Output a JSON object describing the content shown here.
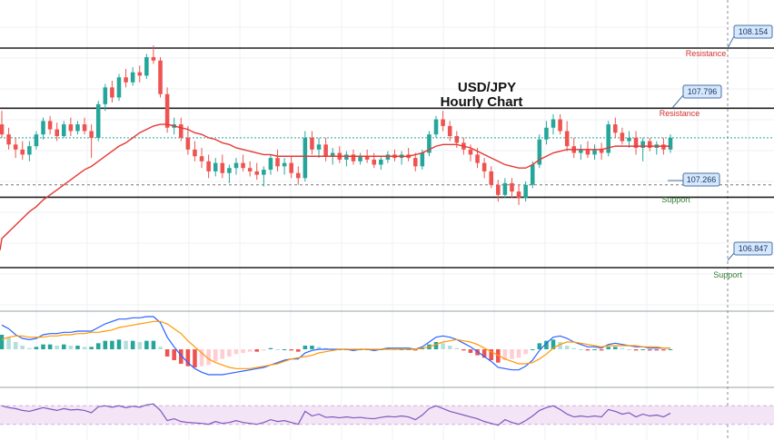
{
  "chart_data": {
    "type": "candlestick",
    "title_line1": "USD/JPY",
    "title_line2": "Hourly Chart",
    "colors": {
      "up": "#26a69a",
      "down": "#ef5350",
      "ma": "#e53935",
      "level_line": "#222222",
      "callout_fill": "#d6e8fb",
      "callout_stroke": "#4a6fa5",
      "resistance_text": "#d32f2f",
      "support_text": "#2e7d32",
      "macd_line": "#2962ff",
      "signal_line": "#ff9800",
      "rsi_line": "#7e57c2",
      "rsi_band": "#f3e5f5",
      "last_price_line": "#26a69a"
    },
    "price_range": [
      106.75,
      108.22
    ],
    "levels": [
      {
        "value": 108.154,
        "label": "108.154",
        "tag": "Resistance",
        "kind": "resistance"
      },
      {
        "value": 107.796,
        "label": "107.796",
        "tag": "Resistance",
        "kind": "resistance"
      },
      {
        "value": 107.266,
        "label": "107.266",
        "tag": "Support",
        "kind": "support"
      },
      {
        "value": 106.847,
        "label": "106.847",
        "tag": "Support",
        "kind": "support"
      }
    ],
    "last_price": 107.62,
    "dotted_level": 107.34,
    "candles": [
      [
        107.7,
        107.78,
        107.62,
        107.64
      ],
      [
        107.64,
        107.68,
        107.55,
        107.58
      ],
      [
        107.58,
        107.62,
        107.5,
        107.55
      ],
      [
        107.55,
        107.6,
        107.49,
        107.52
      ],
      [
        107.52,
        107.6,
        107.48,
        107.57
      ],
      [
        107.57,
        107.66,
        107.55,
        107.64
      ],
      [
        107.64,
        107.74,
        107.61,
        107.72
      ],
      [
        107.72,
        107.75,
        107.64,
        107.67
      ],
      [
        107.67,
        107.71,
        107.6,
        107.63
      ],
      [
        107.63,
        107.72,
        107.62,
        107.7
      ],
      [
        107.7,
        107.74,
        107.63,
        107.66
      ],
      [
        107.66,
        107.72,
        107.64,
        107.7
      ],
      [
        107.7,
        107.74,
        107.64,
        107.66
      ],
      [
        107.66,
        107.7,
        107.5,
        107.62
      ],
      [
        107.62,
        107.84,
        107.6,
        107.82
      ],
      [
        107.82,
        107.94,
        107.78,
        107.92
      ],
      [
        107.92,
        107.96,
        107.83,
        107.86
      ],
      [
        107.86,
        108.0,
        107.84,
        107.98
      ],
      [
        107.98,
        108.03,
        107.92,
        107.95
      ],
      [
        107.95,
        108.04,
        107.93,
        108.01
      ],
      [
        108.01,
        108.05,
        107.95,
        107.99
      ],
      [
        107.99,
        108.12,
        107.97,
        108.1
      ],
      [
        108.1,
        108.17,
        108.06,
        108.08
      ],
      [
        108.08,
        108.1,
        107.86,
        107.88
      ],
      [
        107.88,
        107.92,
        107.65,
        107.68
      ],
      [
        107.68,
        107.74,
        107.64,
        107.7
      ],
      [
        107.7,
        107.74,
        107.6,
        107.62
      ],
      [
        107.62,
        107.69,
        107.52,
        107.55
      ],
      [
        107.55,
        107.6,
        107.48,
        107.51
      ],
      [
        107.51,
        107.56,
        107.44,
        107.48
      ],
      [
        107.48,
        107.52,
        107.38,
        107.42
      ],
      [
        107.42,
        107.5,
        107.39,
        107.47
      ],
      [
        107.47,
        107.52,
        107.38,
        107.41
      ],
      [
        107.41,
        107.46,
        107.35,
        107.44
      ],
      [
        107.44,
        107.5,
        107.4,
        107.47
      ],
      [
        107.47,
        107.52,
        107.42,
        107.44
      ],
      [
        107.44,
        107.48,
        107.39,
        107.42
      ],
      [
        107.42,
        107.47,
        107.37,
        107.4
      ],
      [
        107.4,
        107.45,
        107.33,
        107.43
      ],
      [
        107.43,
        107.52,
        107.4,
        107.5
      ],
      [
        107.5,
        107.55,
        107.42,
        107.45
      ],
      [
        107.45,
        107.5,
        107.4,
        107.47
      ],
      [
        107.47,
        107.51,
        107.38,
        107.41
      ],
      [
        107.41,
        107.45,
        107.34,
        107.38
      ],
      [
        107.38,
        107.66,
        107.36,
        107.62
      ],
      [
        107.62,
        107.66,
        107.52,
        107.55
      ],
      [
        107.55,
        107.62,
        107.5,
        107.58
      ],
      [
        107.58,
        107.62,
        107.48,
        107.51
      ],
      [
        107.51,
        107.56,
        107.46,
        107.53
      ],
      [
        107.53,
        107.57,
        107.47,
        107.49
      ],
      [
        107.49,
        107.54,
        107.45,
        107.52
      ],
      [
        107.52,
        107.55,
        107.46,
        107.48
      ],
      [
        107.48,
        107.53,
        107.46,
        107.51
      ],
      [
        107.51,
        107.55,
        107.47,
        107.49
      ],
      [
        107.49,
        107.53,
        107.44,
        107.46
      ],
      [
        107.46,
        107.51,
        107.43,
        107.49
      ],
      [
        107.49,
        107.54,
        107.47,
        107.52
      ],
      [
        107.52,
        107.55,
        107.48,
        107.5
      ],
      [
        107.5,
        107.54,
        107.46,
        107.52
      ],
      [
        107.52,
        107.56,
        107.48,
        107.5
      ],
      [
        107.5,
        107.53,
        107.42,
        107.45
      ],
      [
        107.45,
        107.55,
        107.43,
        107.53
      ],
      [
        107.53,
        107.66,
        107.51,
        107.64
      ],
      [
        107.64,
        107.75,
        107.62,
        107.73
      ],
      [
        107.73,
        107.78,
        107.66,
        107.69
      ],
      [
        107.69,
        107.72,
        107.6,
        107.63
      ],
      [
        107.63,
        107.66,
        107.56,
        107.59
      ],
      [
        107.59,
        107.62,
        107.52,
        107.55
      ],
      [
        107.55,
        107.58,
        107.48,
        107.52
      ],
      [
        107.52,
        107.56,
        107.44,
        107.47
      ],
      [
        107.47,
        107.5,
        107.38,
        107.42
      ],
      [
        107.42,
        107.45,
        107.32,
        107.34
      ],
      [
        107.34,
        107.37,
        107.24,
        107.28
      ],
      [
        107.28,
        107.38,
        107.26,
        107.35
      ],
      [
        107.35,
        107.38,
        107.26,
        107.3
      ],
      [
        107.3,
        107.34,
        107.22,
        107.26
      ],
      [
        107.26,
        107.36,
        107.24,
        107.34
      ],
      [
        107.34,
        107.48,
        107.32,
        107.46
      ],
      [
        107.46,
        107.64,
        107.44,
        107.61
      ],
      [
        107.61,
        107.72,
        107.58,
        107.68
      ],
      [
        107.68,
        107.76,
        107.64,
        107.73
      ],
      [
        107.73,
        107.76,
        107.64,
        107.66
      ],
      [
        107.66,
        107.72,
        107.54,
        107.57
      ],
      [
        107.57,
        107.62,
        107.5,
        107.53
      ],
      [
        107.53,
        107.58,
        107.49,
        107.55
      ],
      [
        107.55,
        107.6,
        107.5,
        107.52
      ],
      [
        107.52,
        107.58,
        107.49,
        107.55
      ],
      [
        107.55,
        107.59,
        107.49,
        107.53
      ],
      [
        107.53,
        107.72,
        107.51,
        107.7
      ],
      [
        107.7,
        107.74,
        107.62,
        107.65
      ],
      [
        107.65,
        107.68,
        107.58,
        107.6
      ],
      [
        107.6,
        107.66,
        107.56,
        107.62
      ],
      [
        107.62,
        107.66,
        107.52,
        107.56
      ],
      [
        107.56,
        107.62,
        107.48,
        107.6
      ],
      [
        107.6,
        107.62,
        107.54,
        107.56
      ],
      [
        107.56,
        107.6,
        107.52,
        107.58
      ],
      [
        107.58,
        107.62,
        107.52,
        107.55
      ],
      [
        107.55,
        107.64,
        107.53,
        107.62
      ]
    ],
    "ma_values": [
      107.02,
      107.06,
      107.1,
      107.14,
      107.18,
      107.21,
      107.25,
      107.28,
      107.31,
      107.34,
      107.37,
      107.4,
      107.43,
      107.45,
      107.48,
      107.51,
      107.54,
      107.57,
      107.59,
      107.62,
      107.65,
      107.67,
      107.69,
      107.7,
      107.7,
      107.69,
      107.68,
      107.67,
      107.65,
      107.64,
      107.62,
      107.61,
      107.59,
      107.58,
      107.56,
      107.55,
      107.54,
      107.53,
      107.52,
      107.52,
      107.51,
      107.51,
      107.51,
      107.51,
      107.51,
      107.51,
      107.51,
      107.51,
      107.51,
      107.51,
      107.51,
      107.51,
      107.51,
      107.51,
      107.51,
      107.51,
      107.51,
      107.51,
      107.51,
      107.51,
      107.52,
      107.53,
      107.55,
      107.57,
      107.58,
      107.58,
      107.58,
      107.57,
      107.56,
      107.54,
      107.52,
      107.5,
      107.48,
      107.46,
      107.45,
      107.44,
      107.44,
      107.46,
      107.49,
      107.51,
      107.53,
      107.54,
      107.55,
      107.55,
      107.55,
      107.55,
      107.55,
      107.55,
      107.56,
      107.57,
      107.57,
      107.57,
      107.57,
      107.57,
      107.57,
      107.57,
      107.57,
      107.57
    ],
    "macd": {
      "range": [
        -0.3,
        0.3
      ],
      "histogram": [
        0.12,
        0.1,
        0.06,
        0.03,
        0.01,
        0.02,
        0.04,
        0.04,
        0.03,
        0.04,
        0.03,
        0.03,
        0.02,
        0.02,
        0.05,
        0.07,
        0.07,
        0.08,
        0.07,
        0.07,
        0.06,
        0.07,
        0.07,
        0.02,
        -0.06,
        -0.09,
        -0.12,
        -0.14,
        -0.15,
        -0.14,
        -0.13,
        -0.1,
        -0.08,
        -0.06,
        -0.04,
        -0.03,
        -0.02,
        -0.02,
        -0.01,
        0.01,
        0.0,
        0.0,
        -0.01,
        -0.02,
        0.03,
        0.03,
        0.02,
        0.01,
        0.0,
        0.0,
        0.0,
        -0.01,
        0.0,
        0.0,
        -0.01,
        0.0,
        0.01,
        0.0,
        0.0,
        0.0,
        -0.01,
        0.01,
        0.04,
        0.06,
        0.05,
        0.03,
        0.01,
        -0.01,
        -0.03,
        -0.05,
        -0.07,
        -0.09,
        -0.11,
        -0.09,
        -0.08,
        -0.07,
        -0.04,
        0.0,
        0.05,
        0.07,
        0.08,
        0.06,
        0.03,
        0.01,
        0.0,
        -0.01,
        0.0,
        -0.01,
        0.02,
        0.02,
        0.01,
        0.0,
        -0.01,
        0.0,
        -0.01,
        -0.01,
        -0.01,
        0.0
      ],
      "macd_line": [
        0.2,
        0.17,
        0.12,
        0.09,
        0.08,
        0.09,
        0.12,
        0.13,
        0.13,
        0.14,
        0.14,
        0.15,
        0.15,
        0.15,
        0.18,
        0.21,
        0.23,
        0.25,
        0.25,
        0.26,
        0.26,
        0.27,
        0.27,
        0.22,
        0.1,
        0.02,
        -0.05,
        -0.11,
        -0.16,
        -0.19,
        -0.21,
        -0.21,
        -0.21,
        -0.2,
        -0.19,
        -0.18,
        -0.17,
        -0.16,
        -0.15,
        -0.13,
        -0.11,
        -0.09,
        -0.08,
        -0.08,
        -0.03,
        -0.01,
        0.0,
        0.0,
        0.0,
        0.0,
        0.0,
        -0.01,
        0.0,
        0.0,
        -0.01,
        0.0,
        0.01,
        0.01,
        0.01,
        0.01,
        0.0,
        0.02,
        0.06,
        0.1,
        0.11,
        0.1,
        0.08,
        0.05,
        0.02,
        -0.02,
        -0.06,
        -0.1,
        -0.15,
        -0.16,
        -0.17,
        -0.17,
        -0.14,
        -0.09,
        -0.01,
        0.05,
        0.1,
        0.11,
        0.09,
        0.06,
        0.04,
        0.02,
        0.02,
        0.01,
        0.04,
        0.05,
        0.04,
        0.03,
        0.02,
        0.02,
        0.01,
        0.01,
        0.01,
        0.01
      ],
      "signal_line": [
        0.08,
        0.1,
        0.11,
        0.11,
        0.1,
        0.1,
        0.1,
        0.11,
        0.11,
        0.12,
        0.12,
        0.13,
        0.13,
        0.14,
        0.14,
        0.15,
        0.16,
        0.18,
        0.19,
        0.2,
        0.21,
        0.22,
        0.23,
        0.23,
        0.21,
        0.17,
        0.13,
        0.07,
        0.02,
        -0.03,
        -0.08,
        -0.11,
        -0.13,
        -0.15,
        -0.16,
        -0.16,
        -0.16,
        -0.15,
        -0.14,
        -0.13,
        -0.12,
        -0.1,
        -0.08,
        -0.07,
        -0.06,
        -0.05,
        -0.03,
        -0.02,
        -0.01,
        0.0,
        0.0,
        0.0,
        0.0,
        0.0,
        0.0,
        0.0,
        0.0,
        0.0,
        0.0,
        0.0,
        0.0,
        0.01,
        0.02,
        0.04,
        0.06,
        0.07,
        0.08,
        0.07,
        0.06,
        0.04,
        0.01,
        -0.02,
        -0.05,
        -0.08,
        -0.1,
        -0.12,
        -0.12,
        -0.11,
        -0.08,
        -0.04,
        0.01,
        0.04,
        0.06,
        0.06,
        0.05,
        0.04,
        0.03,
        0.02,
        0.03,
        0.03,
        0.03,
        0.03,
        0.03,
        0.02,
        0.02,
        0.02,
        0.01,
        0.01
      ]
    },
    "rsi": {
      "range": [
        0,
        100
      ],
      "band": [
        30,
        70
      ],
      "values": [
        70,
        66,
        64,
        60,
        58,
        62,
        66,
        63,
        60,
        64,
        61,
        62,
        60,
        55,
        68,
        70,
        67,
        70,
        66,
        69,
        67,
        72,
        74,
        60,
        38,
        42,
        36,
        34,
        33,
        32,
        30,
        36,
        32,
        34,
        38,
        34,
        32,
        30,
        34,
        40,
        36,
        38,
        34,
        30,
        58,
        48,
        52,
        45,
        46,
        44,
        46,
        44,
        45,
        43,
        42,
        45,
        47,
        46,
        48,
        46,
        40,
        50,
        64,
        70,
        64,
        58,
        54,
        50,
        46,
        42,
        36,
        32,
        28,
        40,
        34,
        30,
        38,
        48,
        60,
        66,
        70,
        62,
        52,
        46,
        48,
        46,
        48,
        46,
        62,
        58,
        52,
        55,
        46,
        52,
        48,
        50,
        46,
        54
      ]
    }
  }
}
